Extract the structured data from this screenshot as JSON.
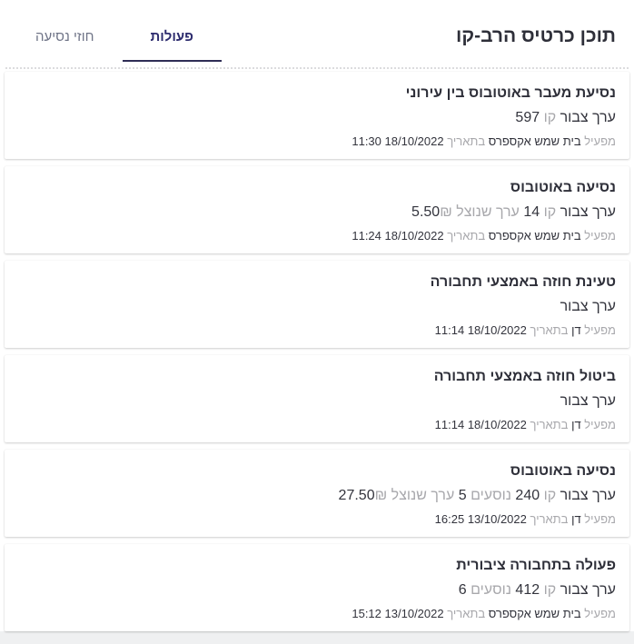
{
  "header": {
    "title": "תוכן כרטיס הרב-קו",
    "tabs": [
      {
        "label": "פעולות",
        "active": true
      },
      {
        "label": "חוזי נסיעה",
        "active": false
      }
    ]
  },
  "labels": {
    "operator": "מפעיל",
    "date": "בתאריך"
  },
  "colors": {
    "accent_tab": "#2d2c6e",
    "dark_text": "#33343d",
    "gray_text": "#a8a8ac"
  },
  "cards": [
    {
      "title": "נסיעת מעבר באוטובוס בין עירוני",
      "details": [
        {
          "type": "value",
          "text": "ערך צבור"
        },
        {
          "type": "label",
          "text": "קו"
        },
        {
          "type": "value",
          "text": "597"
        }
      ],
      "operator": "בית שמש אקספרס",
      "date": "18/10/2022",
      "time": "11:30"
    },
    {
      "title": "נסיעה באוטובוס",
      "details": [
        {
          "type": "value",
          "text": "ערך צבור"
        },
        {
          "type": "label",
          "text": "קו"
        },
        {
          "type": "value",
          "text": "14"
        },
        {
          "type": "label",
          "text": "ערך שנוצל"
        },
        {
          "type": "amount",
          "text": "5.50",
          "currency": "₪"
        }
      ],
      "operator": "בית שמש אקספרס",
      "date": "18/10/2022",
      "time": "11:24"
    },
    {
      "title": "טעינת חוזה באמצעי תחבורה",
      "details": [
        {
          "type": "value",
          "text": "ערך צבור"
        }
      ],
      "operator": "דן",
      "date": "18/10/2022",
      "time": "11:14"
    },
    {
      "title": "ביטול חוזה באמצעי תחבורה",
      "details": [
        {
          "type": "value",
          "text": "ערך צבור"
        }
      ],
      "operator": "דן",
      "date": "18/10/2022",
      "time": "11:14"
    },
    {
      "title": "נסיעה באוטובוס",
      "details": [
        {
          "type": "value",
          "text": "ערך צבור"
        },
        {
          "type": "label",
          "text": "קו"
        },
        {
          "type": "value",
          "text": "240"
        },
        {
          "type": "label",
          "text": "נוסעים"
        },
        {
          "type": "value",
          "text": "5"
        },
        {
          "type": "label",
          "text": "ערך שנוצל"
        },
        {
          "type": "amount",
          "text": "27.50",
          "currency": "₪"
        }
      ],
      "operator": "דן",
      "date": "13/10/2022",
      "time": "16:25"
    },
    {
      "title": "פעולה בתחבורה ציבורית",
      "details": [
        {
          "type": "value",
          "text": "ערך צבור"
        },
        {
          "type": "label",
          "text": "קו"
        },
        {
          "type": "value",
          "text": "412"
        },
        {
          "type": "label",
          "text": "נוסעים"
        },
        {
          "type": "value",
          "text": "6"
        }
      ],
      "operator": "בית שמש אקספרס",
      "date": "13/10/2022",
      "time": "15:12"
    }
  ]
}
